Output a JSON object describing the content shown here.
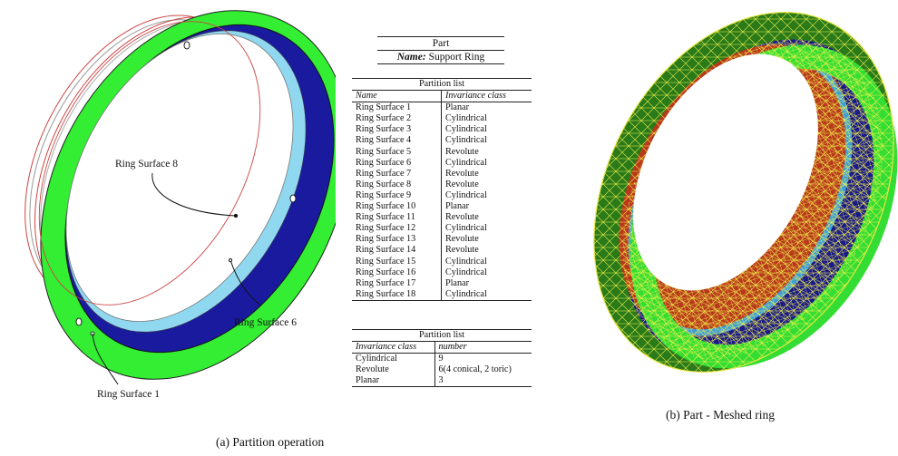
{
  "figure_a": {
    "labels": {
      "surface8": "Ring Surface 8",
      "surface6": "Ring Surface 6",
      "surface1": "Ring Surface 1"
    },
    "caption": "(a) Partition operation"
  },
  "part_table": {
    "title": "Part",
    "name_label": "Name:",
    "name_value": "Support Ring"
  },
  "partition_table": {
    "title": "Partition list",
    "headers": [
      "Name",
      "Invariance class"
    ],
    "rows": [
      [
        "Ring Surface 1",
        "Planar"
      ],
      [
        "Ring Surface 2",
        "Cylindrical"
      ],
      [
        "Ring Surface 3",
        "Cylindrical"
      ],
      [
        "Ring Surface 4",
        "Cylindrical"
      ],
      [
        "Ring Surface 5",
        "Revolute"
      ],
      [
        "Ring Surface 6",
        "Cylindrical"
      ],
      [
        "Ring Surface 7",
        "Revolute"
      ],
      [
        "Ring Surface 8",
        "Revolute"
      ],
      [
        "Ring Surface 9",
        "Cylindrical"
      ],
      [
        "Ring Surface 10",
        "Planar"
      ],
      [
        "Ring Surface 11",
        "Revolute"
      ],
      [
        "Ring Surface 12",
        "Cylindrical"
      ],
      [
        "Ring Surface 13",
        "Revolute"
      ],
      [
        "Ring Surface 14",
        "Revolute"
      ],
      [
        "Ring Surface 15",
        "Cylindrical"
      ],
      [
        "Ring Surface 16",
        "Cylindrical"
      ],
      [
        "Ring Surface 17",
        "Planar"
      ],
      [
        "Ring Surface 18",
        "Cylindrical"
      ]
    ]
  },
  "summary_table": {
    "title": "Partition list",
    "headers": [
      "Invariance class",
      "number"
    ],
    "rows": [
      [
        "Cylindrical",
        "9"
      ],
      [
        "Revolute",
        "6(4 conical, 2 toric)"
      ],
      [
        "Planar",
        "3"
      ]
    ]
  },
  "figure_b": {
    "caption": "(b) Part - Meshed ring"
  },
  "colors": {
    "ring_green": "#33ee33",
    "inner_blue": "#1a1a9e",
    "highlight_cyan": "#8fd8f0",
    "mesh_yellow": "#f2f24a",
    "mesh_green": "#2a7a1a",
    "mesh_red": "#b8391c"
  }
}
